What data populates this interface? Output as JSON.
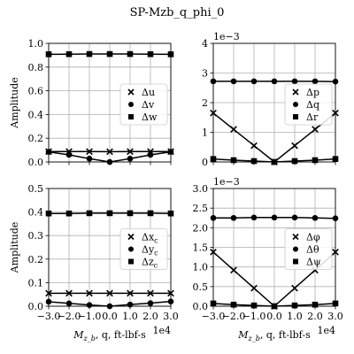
{
  "figure": {
    "title": "SP-Mzb_q_phi_0"
  },
  "chart_data": [
    {
      "type": "line",
      "panel": "top-left",
      "ylabel": "Amplitude",
      "xlabel": "",
      "x_tick_labels_shown": false,
      "xlim": [
        -30000,
        30000
      ],
      "ylim": [
        0,
        1.0
      ],
      "xticks": [
        -30000,
        -20000,
        -10000,
        0,
        10000,
        20000,
        30000
      ],
      "yticks": [
        0,
        0.2,
        0.4,
        0.6,
        0.8,
        1.0
      ],
      "yticklabels": [
        "0.0",
        "0.2",
        "0.4",
        "0.6",
        "0.8",
        "1.0"
      ],
      "scale_label": "",
      "grid": true,
      "legend_position": "center-right",
      "x": [
        -30000,
        -20000,
        -10000,
        0,
        10000,
        20000,
        30000
      ],
      "series": [
        {
          "name": "Δu",
          "marker": "x",
          "values": [
            0.088,
            0.088,
            0.088,
            0.087,
            0.088,
            0.088,
            0.088
          ]
        },
        {
          "name": "Δv",
          "marker": "o",
          "values": [
            0.085,
            0.06,
            0.028,
            0.0,
            0.028,
            0.06,
            0.085
          ]
        },
        {
          "name": "Δw",
          "marker": "s",
          "values": [
            0.908,
            0.909,
            0.91,
            0.91,
            0.91,
            0.909,
            0.908
          ]
        }
      ]
    },
    {
      "type": "line",
      "panel": "top-right",
      "ylabel": "",
      "xlabel": "",
      "x_tick_labels_shown": false,
      "xlim": [
        -30000,
        30000
      ],
      "ylim": [
        0,
        4
      ],
      "xticks": [
        -30000,
        -20000,
        -10000,
        0,
        10000,
        20000,
        30000
      ],
      "yticks": [
        0,
        1,
        2,
        3,
        4
      ],
      "yticklabels": [
        "0",
        "1",
        "2",
        "3",
        "4"
      ],
      "scale_label": "1e−3",
      "grid": true,
      "legend_position": "center-right",
      "x": [
        -30000,
        -20000,
        -10000,
        0,
        10000,
        20000,
        30000
      ],
      "series": [
        {
          "name": "Δp",
          "marker": "x",
          "values": [
            1.65,
            1.1,
            0.55,
            0.0,
            0.55,
            1.1,
            1.65
          ]
        },
        {
          "name": "Δq",
          "marker": "o",
          "values": [
            2.72,
            2.72,
            2.72,
            2.72,
            2.72,
            2.72,
            2.71
          ]
        },
        {
          "name": "Δr",
          "marker": "s",
          "values": [
            0.1,
            0.06,
            0.03,
            0.0,
            0.03,
            0.06,
            0.1
          ]
        }
      ]
    },
    {
      "type": "line",
      "panel": "bottom-left",
      "ylabel": "Amplitude",
      "xlabel": "M_{z_b}, q, ft-lbf-s",
      "x_tick_labels_shown": true,
      "xlim": [
        -30000,
        30000
      ],
      "ylim": [
        0,
        0.5
      ],
      "xticks": [
        -30000,
        -20000,
        -10000,
        0,
        10000,
        20000,
        30000
      ],
      "xticklabels": [
        "−3.0",
        "−2.0",
        "−1.0",
        "0.0",
        "1.0",
        "2.0",
        "3.0"
      ],
      "x_scale_label": "1e4",
      "yticks": [
        0,
        0.1,
        0.2,
        0.3,
        0.4,
        0.5
      ],
      "yticklabels": [
        "0.0",
        "0.1",
        "0.2",
        "0.3",
        "0.4",
        "0.5"
      ],
      "scale_label": "",
      "grid": true,
      "legend_position": "center-right",
      "x": [
        -30000,
        -20000,
        -10000,
        0,
        10000,
        20000,
        30000
      ],
      "series": [
        {
          "name": "Δx_c",
          "marker": "x",
          "values": [
            0.055,
            0.055,
            0.055,
            0.055,
            0.055,
            0.055,
            0.055
          ]
        },
        {
          "name": "Δy_c",
          "marker": "o",
          "values": [
            0.019,
            0.012,
            0.005,
            0.0,
            0.007,
            0.013,
            0.02
          ]
        },
        {
          "name": "Δz_c",
          "marker": "s",
          "values": [
            0.394,
            0.394,
            0.395,
            0.395,
            0.395,
            0.395,
            0.394
          ]
        }
      ]
    },
    {
      "type": "line",
      "panel": "bottom-right",
      "ylabel": "",
      "xlabel": "M_{z_b}, q, ft-lbf-s",
      "x_tick_labels_shown": true,
      "xlim": [
        -30000,
        30000
      ],
      "ylim": [
        0,
        3.0
      ],
      "xticks": [
        -30000,
        -20000,
        -10000,
        0,
        10000,
        20000,
        30000
      ],
      "xticklabels": [
        "−3.0",
        "−2.0",
        "−1.0",
        "0.0",
        "1.0",
        "2.0",
        "3.0"
      ],
      "x_scale_label": "1e4",
      "yticks": [
        0,
        0.5,
        1.0,
        1.5,
        2.0,
        2.5,
        3.0
      ],
      "yticklabels": [
        "0.0",
        "0.5",
        "1.0",
        "1.5",
        "2.0",
        "2.5",
        "3.0"
      ],
      "scale_label": "1e−3",
      "grid": true,
      "legend_position": "center-right",
      "x": [
        -30000,
        -20000,
        -10000,
        0,
        10000,
        20000,
        30000
      ],
      "series": [
        {
          "name": "Δφ",
          "marker": "x",
          "values": [
            1.38,
            0.92,
            0.46,
            0.0,
            0.46,
            0.92,
            1.38
          ]
        },
        {
          "name": "Δθ",
          "marker": "o",
          "values": [
            2.25,
            2.25,
            2.26,
            2.26,
            2.26,
            2.25,
            2.24
          ]
        },
        {
          "name": "Δψ",
          "marker": "s",
          "values": [
            0.07,
            0.04,
            0.02,
            0.0,
            0.02,
            0.04,
            0.07
          ]
        }
      ]
    }
  ]
}
